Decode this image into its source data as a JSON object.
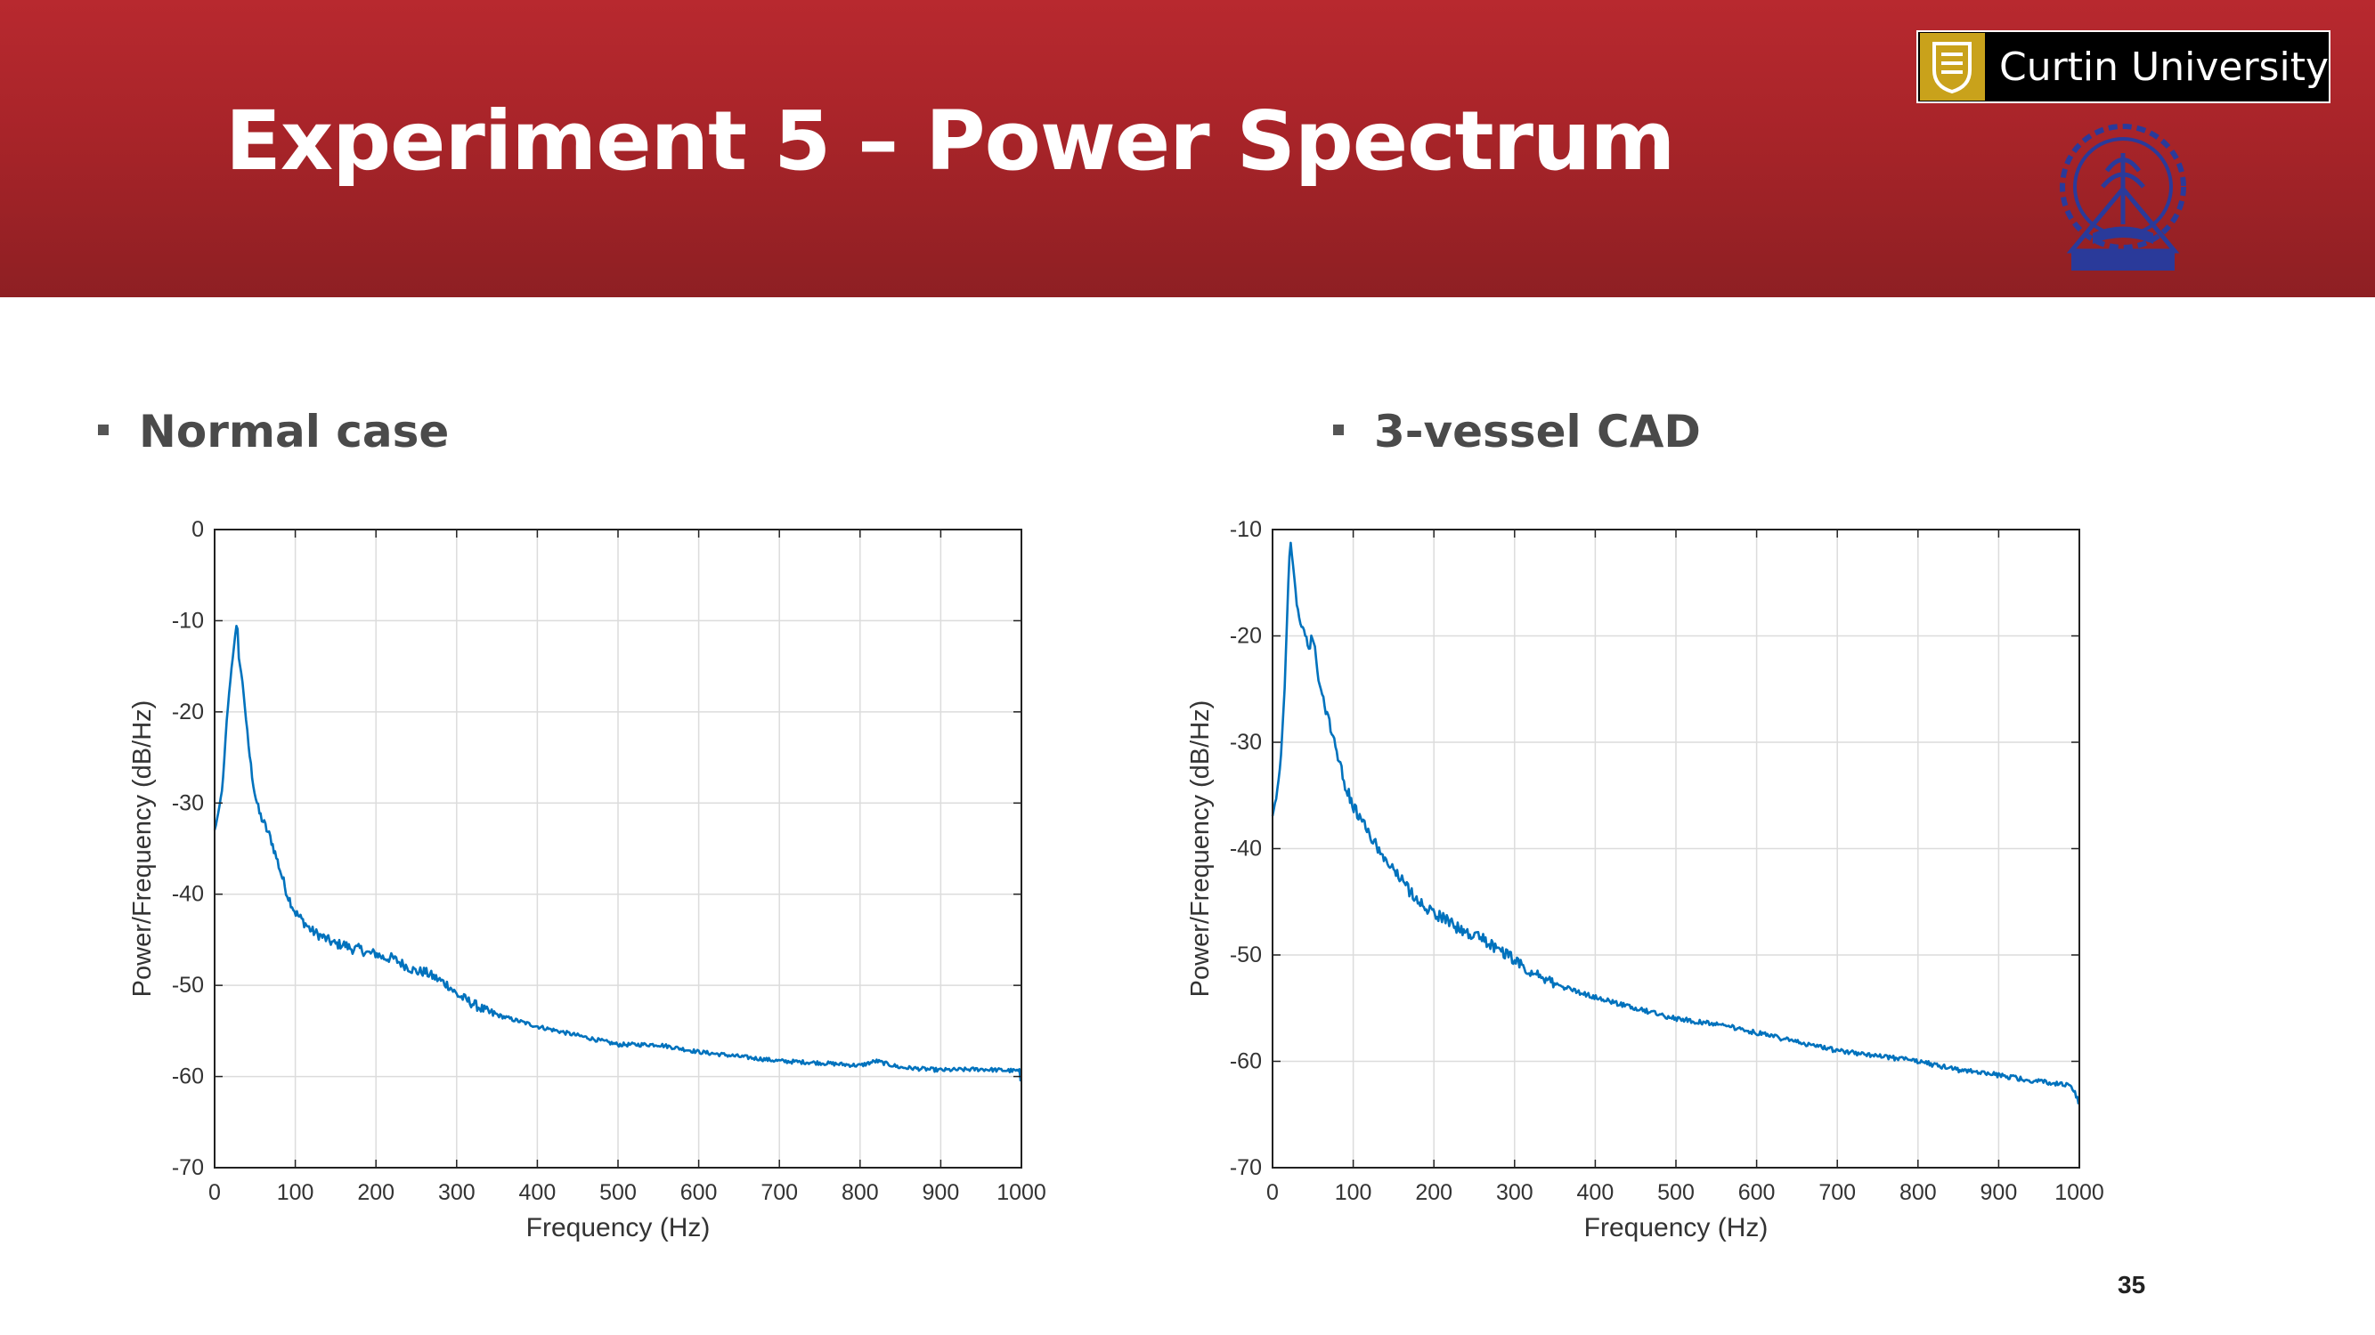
{
  "slide": {
    "title": "Experiment 5 – Power Spectrum",
    "page_number": "35",
    "logo_text": "Curtin University",
    "header_color": "#a82429"
  },
  "left": {
    "bullet": "Normal case"
  },
  "right": {
    "bullet": "3-vessel CAD"
  },
  "chart_data": [
    {
      "type": "line",
      "title": "",
      "xlabel": "Frequency (Hz)",
      "ylabel": "Power/Frequency (dB/Hz)",
      "xlim": [
        0,
        1000
      ],
      "ylim": [
        -70,
        0
      ],
      "xticks": [
        0,
        100,
        200,
        300,
        400,
        500,
        600,
        700,
        800,
        900,
        1000
      ],
      "yticks": [
        0,
        -10,
        -20,
        -30,
        -40,
        -50,
        -60,
        -70
      ],
      "grid": true,
      "line_color": "#0072bd",
      "series": [
        {
          "x": [
            0,
            5,
            10,
            15,
            20,
            25,
            28,
            30,
            35,
            40,
            45,
            50,
            55,
            60,
            70,
            80,
            90,
            100,
            110,
            120,
            130,
            140,
            150,
            160,
            170,
            180,
            190,
            200,
            210,
            220,
            230,
            240,
            250,
            260,
            270,
            280,
            290,
            300,
            320,
            340,
            360,
            380,
            400,
            450,
            500,
            550,
            600,
            650,
            700,
            750,
            800,
            820,
            850,
            900,
            950,
            998,
            1000
          ],
          "values": [
            -33,
            -31,
            -28,
            -21,
            -16,
            -12,
            -10,
            -14,
            -17,
            -22,
            -26,
            -29,
            -31,
            -32,
            -34,
            -37,
            -40,
            -42,
            -43,
            -44,
            -44.5,
            -45,
            -45.5,
            -45.5,
            -46,
            -46,
            -46.5,
            -46.5,
            -47,
            -47,
            -47.5,
            -48,
            -48.5,
            -48.5,
            -49,
            -49.5,
            -50,
            -51,
            -52,
            -53,
            -53.5,
            -54,
            -54.5,
            -55.5,
            -56.5,
            -56.5,
            -57.3,
            -57.8,
            -58.3,
            -58.5,
            -58.8,
            -58.3,
            -59,
            -59.3,
            -59.2,
            -59.4,
            -62
          ]
        }
      ]
    },
    {
      "type": "line",
      "title": "",
      "xlabel": "Frequency (Hz)",
      "ylabel": "Power/Frequency (dB/Hz)",
      "xlim": [
        0,
        1000
      ],
      "ylim": [
        -70,
        -10
      ],
      "xticks": [
        0,
        100,
        200,
        300,
        400,
        500,
        600,
        700,
        800,
        900,
        1000
      ],
      "yticks": [
        -10,
        -20,
        -30,
        -40,
        -50,
        -60,
        -70
      ],
      "grid": true,
      "line_color": "#0072bd",
      "series": [
        {
          "x": [
            0,
            5,
            10,
            15,
            20,
            22,
            25,
            30,
            35,
            40,
            45,
            50,
            55,
            60,
            70,
            80,
            90,
            100,
            110,
            120,
            130,
            140,
            150,
            160,
            170,
            180,
            190,
            200,
            220,
            240,
            260,
            280,
            300,
            320,
            340,
            360,
            380,
            400,
            450,
            500,
            550,
            600,
            650,
            700,
            750,
            800,
            850,
            900,
            950,
            990,
            1000
          ],
          "values": [
            -37,
            -35,
            -32,
            -25,
            -14,
            -11,
            -13,
            -17,
            -19,
            -19.5,
            -21,
            -20,
            -23,
            -25,
            -28,
            -31,
            -34,
            -36,
            -37.5,
            -38.5,
            -40,
            -41,
            -42,
            -43,
            -44,
            -44.8,
            -45.5,
            -46,
            -47,
            -48,
            -48.5,
            -49.5,
            -50.5,
            -51.5,
            -52.5,
            -53,
            -53.5,
            -54,
            -55,
            -56,
            -56.5,
            -57.3,
            -58.2,
            -59,
            -59.5,
            -60,
            -60.8,
            -61.3,
            -61.9,
            -62.2,
            -64
          ]
        }
      ]
    }
  ]
}
